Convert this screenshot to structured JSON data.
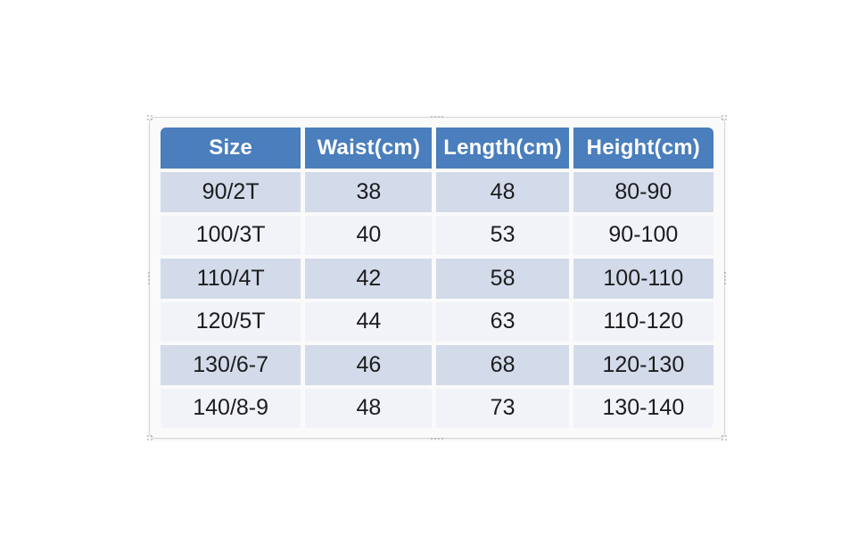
{
  "page": {
    "background": "#ffffff"
  },
  "chart_data": {
    "type": "table",
    "title": "",
    "columns": [
      "Size",
      "Waist(cm)",
      "Length(cm)",
      "Height(cm)"
    ],
    "rows": [
      [
        "90/2T",
        "38",
        "48",
        "80-90"
      ],
      [
        "100/3T",
        "40",
        "53",
        "90-100"
      ],
      [
        "110/4T",
        "42",
        "58",
        "100-110"
      ],
      [
        "120/5T",
        "44",
        "63",
        "110-120"
      ],
      [
        "130/6-7",
        "46",
        "68",
        "120-130"
      ],
      [
        "140/8-9",
        "48",
        "73",
        "130-140"
      ]
    ],
    "column_widths_pct": [
      26,
      23.5,
      24.5,
      26
    ],
    "layout": {
      "banded_rows": true,
      "header_position": "top",
      "grid": "white-gaps-between-cells"
    },
    "colors": {
      "header_bg": "#4a7ebd",
      "header_text": "#ffffff",
      "row_odd_bg": "#d3dae9",
      "row_even_bg": "#f2f3f8",
      "body_text": "#1c1c1e",
      "separator": "#fafafb",
      "frame_border": "#d6d6da",
      "handle_dot": "#aaaab2"
    }
  }
}
